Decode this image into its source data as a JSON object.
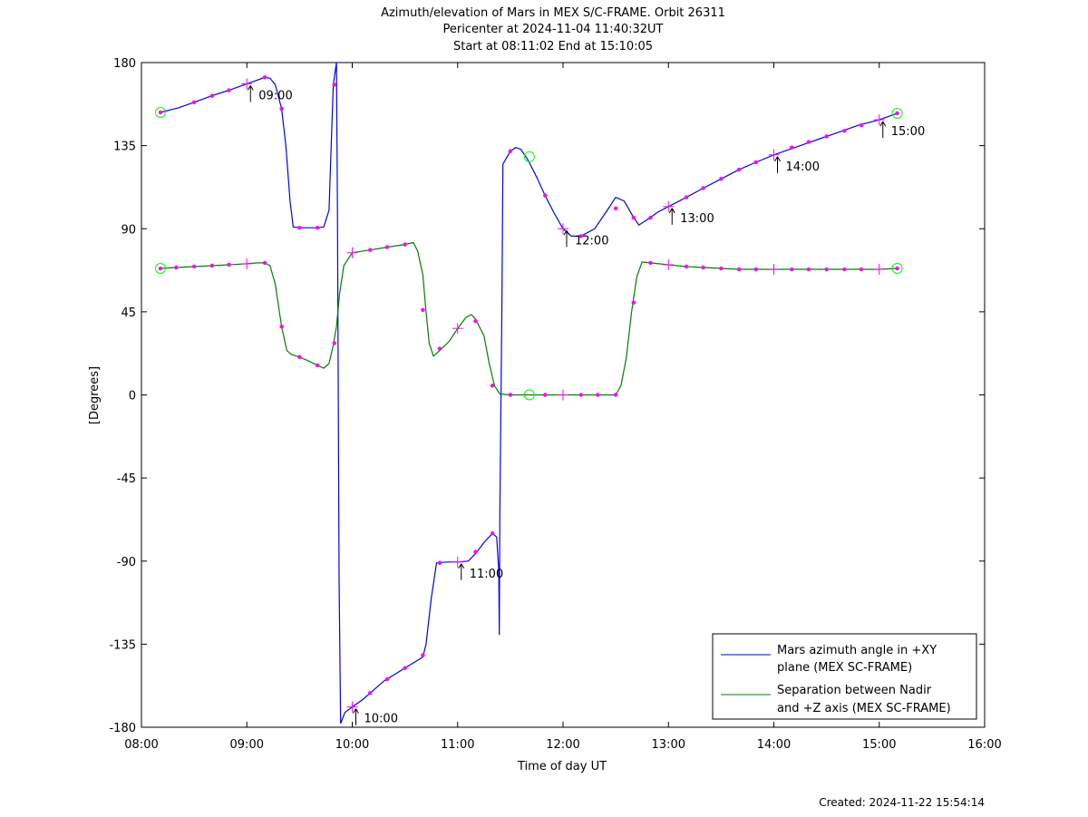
{
  "chart_data": {
    "type": "line",
    "title_lines": [
      "Azimuth/elevation of Mars in MEX S/C-FRAME.  Orbit 26311",
      "Pericenter at 2024-11-04 11:40:32UT",
      "Start at 08:11:02 End at 15:10:05"
    ],
    "xlabel": "Time of day UT",
    "ylabel": "[Degrees]",
    "xlim": [
      8,
      16
    ],
    "ylim": [
      -180,
      180
    ],
    "xticks": [
      {
        "v": 8,
        "label": "08:00"
      },
      {
        "v": 9,
        "label": "09:00"
      },
      {
        "v": 10,
        "label": "10:00"
      },
      {
        "v": 11,
        "label": "11:00"
      },
      {
        "v": 12,
        "label": "12:00"
      },
      {
        "v": 13,
        "label": "13:00"
      },
      {
        "v": 14,
        "label": "14:00"
      },
      {
        "v": 15,
        "label": "15:00"
      },
      {
        "v": 16,
        "label": "16:00"
      }
    ],
    "yticks": [
      {
        "v": 180,
        "label": "180"
      },
      {
        "v": 135,
        "label": "135"
      },
      {
        "v": 90,
        "label": "90"
      },
      {
        "v": 45,
        "label": "45"
      },
      {
        "v": 0,
        "label": "0"
      },
      {
        "v": -45,
        "label": "-45"
      },
      {
        "v": -90,
        "label": "-90"
      },
      {
        "v": -135,
        "label": "-135"
      },
      {
        "v": -180,
        "label": "-180"
      }
    ],
    "grid": false,
    "legend_position": "bottom-right",
    "series": [
      {
        "name_lines": [
          "Mars azimuth angle in +XY",
          "plane (MEX SC-FRAME)"
        ],
        "color": "#0000ff",
        "points": [
          [
            8.18,
            153
          ],
          [
            8.35,
            155.5
          ],
          [
            8.5,
            158.5
          ],
          [
            8.67,
            162
          ],
          [
            8.83,
            165
          ],
          [
            9.0,
            168.5
          ],
          [
            9.1,
            170.5
          ],
          [
            9.17,
            172
          ],
          [
            9.22,
            171.5
          ],
          [
            9.27,
            168
          ],
          [
            9.33,
            155
          ],
          [
            9.37,
            135
          ],
          [
            9.41,
            105
          ],
          [
            9.44,
            91
          ],
          [
            9.5,
            90.5
          ],
          [
            9.58,
            90.5
          ],
          [
            9.67,
            90.5
          ],
          [
            9.73,
            91
          ],
          [
            9.78,
            100
          ],
          [
            9.8,
            135
          ],
          [
            9.82,
            168
          ],
          [
            9.85,
            180
          ],
          [
            9.86,
            100
          ],
          [
            9.875,
            -100
          ],
          [
            9.89,
            -178
          ],
          [
            9.93,
            -172
          ],
          [
            10.0,
            -169
          ],
          [
            10.1,
            -165
          ],
          [
            10.2,
            -160
          ],
          [
            10.3,
            -155
          ],
          [
            10.5,
            -148
          ],
          [
            10.67,
            -142
          ],
          [
            10.7,
            -135
          ],
          [
            10.75,
            -110
          ],
          [
            10.8,
            -91
          ],
          [
            10.9,
            -90.5
          ],
          [
            11.0,
            -90.5
          ],
          [
            11.1,
            -90
          ],
          [
            11.17,
            -86
          ],
          [
            11.25,
            -80
          ],
          [
            11.33,
            -75
          ],
          [
            11.37,
            -77
          ],
          [
            11.39,
            -95
          ],
          [
            11.395,
            -130
          ],
          [
            11.4,
            -65
          ],
          [
            11.42,
            50
          ],
          [
            11.43,
            125
          ],
          [
            11.5,
            132
          ],
          [
            11.55,
            134
          ],
          [
            11.6,
            133
          ],
          [
            11.67,
            127
          ],
          [
            11.75,
            118
          ],
          [
            11.83,
            108
          ],
          [
            11.92,
            98
          ],
          [
            12.0,
            90
          ],
          [
            12.08,
            86
          ],
          [
            12.17,
            86
          ],
          [
            12.3,
            90
          ],
          [
            12.42,
            100
          ],
          [
            12.5,
            107
          ],
          [
            12.58,
            105
          ],
          [
            12.67,
            96
          ],
          [
            12.72,
            92
          ],
          [
            12.8,
            95
          ],
          [
            12.9,
            99
          ],
          [
            13.0,
            102
          ],
          [
            13.17,
            107
          ],
          [
            13.33,
            112
          ],
          [
            13.5,
            117
          ],
          [
            13.67,
            122
          ],
          [
            13.83,
            126
          ],
          [
            14.0,
            130
          ],
          [
            14.2,
            134
          ],
          [
            14.4,
            138
          ],
          [
            14.6,
            142
          ],
          [
            14.8,
            146
          ],
          [
            15.0,
            149
          ],
          [
            15.17,
            152.5
          ]
        ],
        "markers": [
          [
            8.18,
            153
          ],
          [
            8.5,
            158.5
          ],
          [
            8.67,
            162
          ],
          [
            8.83,
            165
          ],
          [
            9.17,
            172
          ],
          [
            9.33,
            155
          ],
          [
            9.5,
            90.5
          ],
          [
            9.67,
            90.5
          ],
          [
            9.83,
            168
          ],
          [
            10.17,
            -161.5
          ],
          [
            10.33,
            -154
          ],
          [
            10.5,
            -148
          ],
          [
            10.67,
            -141
          ],
          [
            10.83,
            -91
          ],
          [
            11.17,
            -85
          ],
          [
            11.33,
            -75
          ],
          [
            11.5,
            132
          ],
          [
            11.83,
            108
          ],
          [
            12.17,
            86
          ],
          [
            12.5,
            101
          ],
          [
            12.67,
            96
          ],
          [
            12.83,
            96
          ],
          [
            13.17,
            107
          ],
          [
            13.33,
            112
          ],
          [
            13.5,
            117
          ],
          [
            13.67,
            122
          ],
          [
            13.83,
            126
          ],
          [
            14.17,
            134
          ],
          [
            14.33,
            137
          ],
          [
            14.5,
            140
          ],
          [
            14.67,
            143
          ],
          [
            14.83,
            146
          ],
          [
            15.17,
            152.5
          ]
        ],
        "hour_crosses": [
          [
            9.0,
            168.5
          ],
          [
            10.0,
            -169
          ],
          [
            11.0,
            -90.5
          ],
          [
            12.0,
            90
          ],
          [
            13.0,
            102
          ],
          [
            14.0,
            130
          ],
          [
            15.0,
            149
          ]
        ],
        "circles": [
          [
            8.18,
            153
          ],
          [
            11.68,
            129
          ],
          [
            15.17,
            152.5
          ]
        ],
        "hour_labels": [
          {
            "x": 9.0,
            "y": 168.5,
            "text": "09:00"
          },
          {
            "x": 10.0,
            "y": -169,
            "text": "10:00"
          },
          {
            "x": 11.0,
            "y": -90.5,
            "text": "11:00"
          },
          {
            "x": 12.0,
            "y": 90,
            "text": "12:00"
          },
          {
            "x": 13.0,
            "y": 102,
            "text": "13:00"
          },
          {
            "x": 14.0,
            "y": 130,
            "text": "14:00"
          },
          {
            "x": 15.0,
            "y": 149,
            "text": "15:00"
          }
        ]
      },
      {
        "name_lines": [
          "Separation between Nadir",
          "and +Z axis (MEX SC-FRAME)"
        ],
        "color": "#008000",
        "points": [
          [
            8.18,
            68.5
          ],
          [
            8.33,
            69
          ],
          [
            8.5,
            69.5
          ],
          [
            8.67,
            70
          ],
          [
            8.83,
            70.5
          ],
          [
            9.0,
            71
          ],
          [
            9.1,
            71.5
          ],
          [
            9.17,
            71.5
          ],
          [
            9.22,
            70
          ],
          [
            9.27,
            60
          ],
          [
            9.33,
            37
          ],
          [
            9.38,
            24
          ],
          [
            9.42,
            22
          ],
          [
            9.5,
            20.5
          ],
          [
            9.6,
            18
          ],
          [
            9.67,
            16
          ],
          [
            9.73,
            14.5
          ],
          [
            9.78,
            17
          ],
          [
            9.82,
            27
          ],
          [
            9.85,
            37
          ],
          [
            9.88,
            55
          ],
          [
            9.92,
            70
          ],
          [
            10.0,
            77
          ],
          [
            10.17,
            78.5
          ],
          [
            10.33,
            80
          ],
          [
            10.5,
            81.5
          ],
          [
            10.58,
            82.5
          ],
          [
            10.62,
            78
          ],
          [
            10.67,
            65
          ],
          [
            10.7,
            45
          ],
          [
            10.73,
            28
          ],
          [
            10.77,
            21
          ],
          [
            10.83,
            24
          ],
          [
            10.92,
            29
          ],
          [
            11.0,
            36
          ],
          [
            11.08,
            42
          ],
          [
            11.13,
            43.5
          ],
          [
            11.17,
            41
          ],
          [
            11.25,
            32
          ],
          [
            11.3,
            17
          ],
          [
            11.35,
            5
          ],
          [
            11.4,
            0.5
          ],
          [
            11.5,
            0
          ],
          [
            11.67,
            0
          ],
          [
            11.83,
            0
          ],
          [
            12.0,
            0
          ],
          [
            12.17,
            0
          ],
          [
            12.33,
            0
          ],
          [
            12.5,
            0
          ],
          [
            12.55,
            5
          ],
          [
            12.6,
            20
          ],
          [
            12.65,
            45
          ],
          [
            12.7,
            64
          ],
          [
            12.75,
            72
          ],
          [
            12.83,
            71.5
          ],
          [
            13.0,
            70.5
          ],
          [
            13.17,
            69.5
          ],
          [
            13.33,
            69
          ],
          [
            13.5,
            68.5
          ],
          [
            13.67,
            68
          ],
          [
            13.83,
            68
          ],
          [
            14.0,
            68
          ],
          [
            14.5,
            68
          ],
          [
            15.0,
            68
          ],
          [
            15.17,
            68.5
          ]
        ],
        "markers": [
          [
            8.18,
            68.5
          ],
          [
            8.33,
            69
          ],
          [
            8.5,
            69.5
          ],
          [
            8.67,
            70
          ],
          [
            8.83,
            70.5
          ],
          [
            9.17,
            71.5
          ],
          [
            9.33,
            37
          ],
          [
            9.5,
            20.5
          ],
          [
            9.67,
            16
          ],
          [
            9.83,
            28
          ],
          [
            10.17,
            78.5
          ],
          [
            10.33,
            80
          ],
          [
            10.5,
            81.5
          ],
          [
            10.67,
            46
          ],
          [
            10.83,
            25
          ],
          [
            11.17,
            40
          ],
          [
            11.33,
            5
          ],
          [
            11.5,
            0
          ],
          [
            11.83,
            0
          ],
          [
            12.17,
            0
          ],
          [
            12.33,
            0
          ],
          [
            12.5,
            0
          ],
          [
            12.67,
            50
          ],
          [
            12.83,
            71.5
          ],
          [
            13.17,
            69.5
          ],
          [
            13.33,
            69
          ],
          [
            13.5,
            68.5
          ],
          [
            13.67,
            68
          ],
          [
            13.83,
            68
          ],
          [
            14.17,
            68
          ],
          [
            14.33,
            68
          ],
          [
            14.5,
            68
          ],
          [
            14.67,
            68
          ],
          [
            14.83,
            68
          ],
          [
            15.17,
            68.5
          ]
        ],
        "hour_crosses": [
          [
            9.0,
            71
          ],
          [
            10.0,
            77
          ],
          [
            11.0,
            36
          ],
          [
            12.0,
            0
          ],
          [
            13.0,
            70.5
          ],
          [
            14.0,
            68
          ],
          [
            15.0,
            68
          ]
        ],
        "circles": [
          [
            8.18,
            68.5
          ],
          [
            11.68,
            0
          ],
          [
            15.17,
            68.5
          ]
        ]
      }
    ]
  },
  "created": "Created: 2024-11-22 15:54:14",
  "colors": {
    "marker": "#ff00ff",
    "circle": "#00ff00",
    "axis": "#000000"
  }
}
